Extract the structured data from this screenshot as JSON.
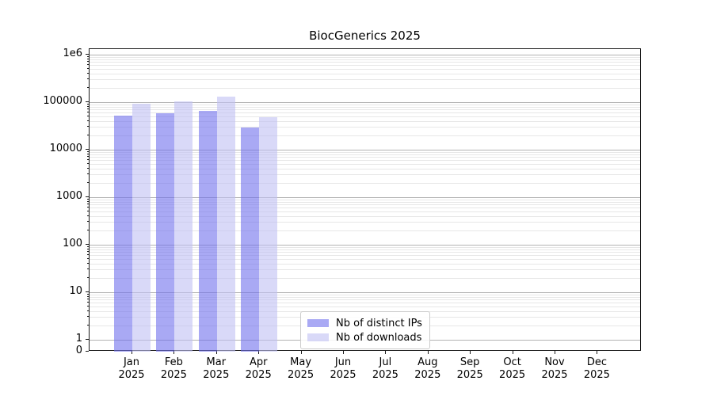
{
  "chart_data": {
    "type": "bar",
    "title": "BiocGenerics 2025",
    "xlabel": "",
    "ylabel": "",
    "yscale": "symlog",
    "ylim": [
      0,
      1300000
    ],
    "grid": "horizontal major+minor log gridlines",
    "legend_position": "inside axes, lower middle",
    "ytick_labels": [
      "0",
      "1",
      "10",
      "100",
      "1000",
      "10000",
      "100000",
      "1e6"
    ],
    "ytick_values": [
      0,
      1,
      10,
      100,
      1000,
      10000,
      100000,
      1000000
    ],
    "months": [
      "Jan",
      "Feb",
      "Mar",
      "Apr",
      "May",
      "Jun",
      "Jul",
      "Aug",
      "Sep",
      "Oct",
      "Nov",
      "Dec"
    ],
    "year_label": "2025",
    "series": [
      {
        "name": "Nb of distinct IPs",
        "color_solid": "#a9a9f4",
        "color_rgba": "rgba(112,112,237,0.6)",
        "values": [
          52000,
          57500,
          64500,
          29500,
          null,
          null,
          null,
          null,
          null,
          null,
          null,
          null
        ]
      },
      {
        "name": "Nb of downloads",
        "color_solid": "#d9d9f8",
        "color_rgba": "rgba(192,192,243,0.6)",
        "values": [
          93000,
          105000,
          133000,
          47500,
          null,
          null,
          null,
          null,
          null,
          null,
          null,
          null
        ]
      }
    ]
  }
}
